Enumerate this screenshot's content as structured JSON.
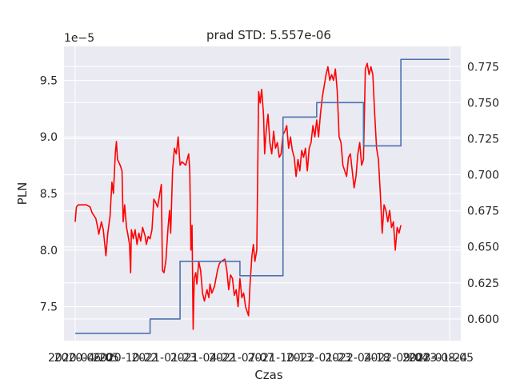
{
  "chart_data": {
    "type": "line",
    "title": "prad STD: 5.557e-06",
    "xlabel": "Czas",
    "ylabel": "PLN",
    "ylabel_right": "",
    "left_axis": {
      "ticks": [
        7.5,
        8.0,
        8.5,
        9.0,
        9.5
      ],
      "tick_labels": [
        "7.5",
        "8.0",
        "8.5",
        "9.0",
        "9.5"
      ],
      "offset_label": "1e−5",
      "ylim": [
        7.2,
        9.8
      ]
    },
    "right_axis": {
      "ticks": [
        0.6,
        0.625,
        0.65,
        0.675,
        0.7,
        0.725,
        0.75,
        0.775
      ],
      "tick_labels": [
        "0.600",
        "0.625",
        "0.650",
        "0.675",
        "0.700",
        "0.725",
        "0.750",
        "0.775"
      ],
      "ylim": [
        0.585,
        0.789
      ]
    },
    "x_axis": {
      "xlim": [
        -0.03,
        1.03
      ],
      "tick_labels": [
        "2020-04-20",
        "2020-06-05",
        "2020-10-22",
        "2021-01-23",
        "2021-04-22",
        "2021-07-07",
        "2021-10-13",
        "2022-01-23",
        "2022-04-18",
        "2022-09-04",
        "2023-01-24",
        "2023-08-05"
      ]
    },
    "grid": true,
    "series": [
      {
        "axis": "left",
        "color": "#ff0000",
        "points": [
          [
            0.0,
            8.25
          ],
          [
            0.003,
            8.38
          ],
          [
            0.008,
            8.4
          ],
          [
            0.03,
            8.4
          ],
          [
            0.04,
            8.38
          ],
          [
            0.045,
            8.33
          ],
          [
            0.055,
            8.28
          ],
          [
            0.06,
            8.2
          ],
          [
            0.063,
            8.14
          ],
          [
            0.07,
            8.25
          ],
          [
            0.075,
            8.18
          ],
          [
            0.078,
            8.08
          ],
          [
            0.082,
            7.95
          ],
          [
            0.087,
            8.15
          ],
          [
            0.093,
            8.3
          ],
          [
            0.098,
            8.6
          ],
          [
            0.102,
            8.5
          ],
          [
            0.107,
            8.85
          ],
          [
            0.11,
            8.96
          ],
          [
            0.113,
            8.8
          ],
          [
            0.12,
            8.75
          ],
          [
            0.125,
            8.7
          ],
          [
            0.128,
            8.25
          ],
          [
            0.132,
            8.4
          ],
          [
            0.137,
            8.2
          ],
          [
            0.14,
            8.15
          ],
          [
            0.145,
            8.05
          ],
          [
            0.148,
            7.8
          ],
          [
            0.15,
            8.18
          ],
          [
            0.155,
            8.1
          ],
          [
            0.16,
            8.18
          ],
          [
            0.165,
            8.05
          ],
          [
            0.17,
            8.15
          ],
          [
            0.175,
            8.08
          ],
          [
            0.18,
            8.2
          ],
          [
            0.187,
            8.12
          ],
          [
            0.19,
            8.05
          ],
          [
            0.195,
            8.12
          ],
          [
            0.2,
            8.1
          ],
          [
            0.205,
            8.18
          ],
          [
            0.21,
            8.45
          ],
          [
            0.215,
            8.42
          ],
          [
            0.22,
            8.38
          ],
          [
            0.225,
            8.48
          ],
          [
            0.23,
            8.58
          ],
          [
            0.233,
            7.82
          ],
          [
            0.237,
            7.8
          ],
          [
            0.242,
            7.9
          ],
          [
            0.248,
            8.2
          ],
          [
            0.252,
            8.35
          ],
          [
            0.255,
            8.15
          ],
          [
            0.26,
            8.7
          ],
          [
            0.265,
            8.9
          ],
          [
            0.27,
            8.85
          ],
          [
            0.275,
            9.0
          ],
          [
            0.28,
            8.75
          ],
          [
            0.285,
            8.78
          ],
          [
            0.295,
            8.75
          ],
          [
            0.303,
            8.85
          ],
          [
            0.306,
            8.7
          ],
          [
            0.309,
            8.0
          ],
          [
            0.312,
            8.22
          ],
          [
            0.315,
            7.3
          ],
          [
            0.318,
            7.75
          ],
          [
            0.322,
            7.8
          ],
          [
            0.325,
            7.7
          ],
          [
            0.33,
            7.9
          ],
          [
            0.335,
            7.82
          ],
          [
            0.34,
            7.62
          ],
          [
            0.345,
            7.55
          ],
          [
            0.352,
            7.65
          ],
          [
            0.357,
            7.58
          ],
          [
            0.36,
            7.7
          ],
          [
            0.365,
            7.62
          ],
          [
            0.372,
            7.68
          ],
          [
            0.38,
            7.82
          ],
          [
            0.385,
            7.88
          ],
          [
            0.39,
            7.9
          ],
          [
            0.4,
            7.92
          ],
          [
            0.405,
            7.82
          ],
          [
            0.41,
            7.65
          ],
          [
            0.415,
            7.78
          ],
          [
            0.42,
            7.75
          ],
          [
            0.425,
            7.6
          ],
          [
            0.43,
            7.65
          ],
          [
            0.435,
            7.5
          ],
          [
            0.44,
            7.75
          ],
          [
            0.445,
            7.58
          ],
          [
            0.45,
            7.62
          ],
          [
            0.455,
            7.5
          ],
          [
            0.46,
            7.45
          ],
          [
            0.463,
            7.42
          ],
          [
            0.467,
            7.7
          ],
          [
            0.472,
            7.95
          ],
          [
            0.476,
            8.05
          ],
          [
            0.48,
            7.9
          ],
          [
            0.485,
            8.0
          ],
          [
            0.49,
            9.4
          ],
          [
            0.494,
            9.3
          ],
          [
            0.498,
            9.42
          ],
          [
            0.503,
            9.2
          ],
          [
            0.506,
            8.85
          ],
          [
            0.51,
            9.05
          ],
          [
            0.515,
            9.2
          ],
          [
            0.52,
            8.95
          ],
          [
            0.525,
            8.85
          ],
          [
            0.53,
            9.05
          ],
          [
            0.535,
            8.9
          ],
          [
            0.54,
            8.95
          ],
          [
            0.545,
            8.82
          ],
          [
            0.55,
            8.85
          ],
          [
            0.555,
            9.02
          ],
          [
            0.56,
            9.05
          ],
          [
            0.565,
            9.1
          ],
          [
            0.57,
            8.9
          ],
          [
            0.575,
            9.0
          ],
          [
            0.58,
            8.88
          ],
          [
            0.585,
            8.82
          ],
          [
            0.59,
            8.65
          ],
          [
            0.595,
            8.8
          ],
          [
            0.6,
            8.7
          ],
          [
            0.605,
            8.88
          ],
          [
            0.61,
            8.82
          ],
          [
            0.615,
            8.9
          ],
          [
            0.62,
            8.7
          ],
          [
            0.625,
            8.9
          ],
          [
            0.63,
            8.95
          ],
          [
            0.635,
            9.1
          ],
          [
            0.64,
            9.0
          ],
          [
            0.645,
            9.15
          ],
          [
            0.65,
            9.0
          ],
          [
            0.655,
            9.2
          ],
          [
            0.66,
            9.35
          ],
          [
            0.665,
            9.45
          ],
          [
            0.67,
            9.55
          ],
          [
            0.675,
            9.62
          ],
          [
            0.68,
            9.5
          ],
          [
            0.685,
            9.55
          ],
          [
            0.69,
            9.5
          ],
          [
            0.695,
            9.6
          ],
          [
            0.7,
            9.4
          ],
          [
            0.705,
            9.0
          ],
          [
            0.71,
            8.95
          ],
          [
            0.715,
            8.75
          ],
          [
            0.72,
            8.7
          ],
          [
            0.725,
            8.65
          ],
          [
            0.73,
            8.82
          ],
          [
            0.735,
            8.85
          ],
          [
            0.74,
            8.7
          ],
          [
            0.745,
            8.55
          ],
          [
            0.75,
            8.65
          ],
          [
            0.755,
            8.85
          ],
          [
            0.76,
            8.95
          ],
          [
            0.765,
            8.75
          ],
          [
            0.77,
            8.8
          ],
          [
            0.775,
            9.6
          ],
          [
            0.78,
            9.65
          ],
          [
            0.785,
            9.55
          ],
          [
            0.79,
            9.62
          ],
          [
            0.795,
            9.55
          ],
          [
            0.8,
            9.2
          ],
          [
            0.805,
            8.9
          ],
          [
            0.81,
            8.8
          ],
          [
            0.815,
            8.5
          ],
          [
            0.82,
            8.15
          ],
          [
            0.825,
            8.4
          ],
          [
            0.83,
            8.35
          ],
          [
            0.835,
            8.25
          ],
          [
            0.84,
            8.35
          ],
          [
            0.845,
            8.2
          ],
          [
            0.85,
            8.25
          ],
          [
            0.855,
            8.0
          ],
          [
            0.86,
            8.2
          ],
          [
            0.865,
            8.15
          ],
          [
            0.87,
            8.22
          ]
        ]
      },
      {
        "axis": "right",
        "color": "#4c72b0",
        "points": [
          [
            0.0,
            0.59
          ],
          [
            0.2,
            0.59
          ],
          [
            0.2,
            0.6
          ],
          [
            0.28,
            0.6
          ],
          [
            0.28,
            0.64
          ],
          [
            0.44,
            0.64
          ],
          [
            0.44,
            0.63
          ],
          [
            0.555,
            0.63
          ],
          [
            0.555,
            0.74
          ],
          [
            0.645,
            0.74
          ],
          [
            0.645,
            0.75
          ],
          [
            0.77,
            0.75
          ],
          [
            0.77,
            0.72
          ],
          [
            0.87,
            0.72
          ],
          [
            0.87,
            0.78
          ],
          [
            1.0,
            0.78
          ]
        ]
      }
    ]
  }
}
